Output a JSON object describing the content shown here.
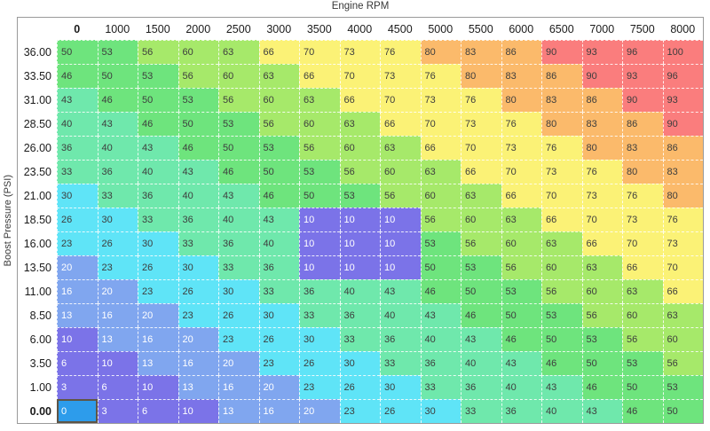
{
  "title": "Engine RPM",
  "y_axis_label": "Boost Pressure (PSI)",
  "chart_data": {
    "type": "heatmap",
    "title": "Engine RPM",
    "xlabel": "Engine RPM",
    "ylabel": "Boost Pressure (PSI)",
    "legend_position": "none",
    "grid": "dashed-white",
    "columns": [
      "0",
      "1000",
      "1500",
      "2000",
      "2500",
      "3000",
      "3500",
      "4000",
      "4500",
      "5000",
      "5500",
      "6000",
      "6500",
      "7000",
      "7500",
      "8000"
    ],
    "rows": [
      {
        "label": "36.00",
        "values": [
          50,
          53,
          56,
          60,
          63,
          66,
          70,
          73,
          76,
          80,
          83,
          86,
          90,
          93,
          96,
          100
        ]
      },
      {
        "label": "33.50",
        "values": [
          46,
          50,
          53,
          56,
          60,
          63,
          66,
          70,
          73,
          76,
          80,
          83,
          86,
          90,
          93,
          96
        ]
      },
      {
        "label": "31.00",
        "values": [
          43,
          46,
          50,
          53,
          56,
          60,
          63,
          66,
          70,
          73,
          76,
          80,
          83,
          86,
          90,
          93
        ]
      },
      {
        "label": "28.50",
        "values": [
          40,
          43,
          46,
          50,
          53,
          56,
          60,
          63,
          66,
          70,
          73,
          76,
          80,
          83,
          86,
          90
        ]
      },
      {
        "label": "26.00",
        "values": [
          36,
          40,
          43,
          46,
          50,
          53,
          56,
          60,
          63,
          66,
          70,
          73,
          76,
          80,
          83,
          86
        ]
      },
      {
        "label": "23.50",
        "values": [
          33,
          36,
          40,
          43,
          46,
          50,
          53,
          56,
          60,
          63,
          66,
          70,
          73,
          76,
          80,
          83
        ]
      },
      {
        "label": "21.00",
        "values": [
          30,
          33,
          36,
          40,
          43,
          46,
          50,
          53,
          56,
          60,
          63,
          66,
          70,
          73,
          76,
          80
        ]
      },
      {
        "label": "18.50",
        "values": [
          26,
          30,
          33,
          36,
          40,
          43,
          10,
          10,
          10,
          56,
          60,
          63,
          66,
          70,
          73,
          76
        ]
      },
      {
        "label": "16.00",
        "values": [
          23,
          26,
          30,
          33,
          36,
          40,
          10,
          10,
          10,
          53,
          56,
          60,
          63,
          66,
          70,
          73
        ]
      },
      {
        "label": "13.50",
        "values": [
          20,
          23,
          26,
          30,
          33,
          36,
          10,
          10,
          10,
          50,
          53,
          56,
          60,
          63,
          66,
          70
        ]
      },
      {
        "label": "11.00",
        "values": [
          16,
          20,
          23,
          26,
          30,
          33,
          36,
          40,
          43,
          46,
          50,
          53,
          56,
          60,
          63,
          66
        ]
      },
      {
        "label": "8.50",
        "values": [
          13,
          16,
          20,
          23,
          26,
          30,
          33,
          36,
          40,
          43,
          46,
          50,
          53,
          56,
          60,
          63
        ]
      },
      {
        "label": "6.00",
        "values": [
          10,
          13,
          16,
          20,
          23,
          26,
          30,
          33,
          36,
          40,
          43,
          46,
          50,
          53,
          56,
          60
        ]
      },
      {
        "label": "3.50",
        "values": [
          6,
          10,
          13,
          16,
          20,
          23,
          26,
          30,
          33,
          36,
          40,
          43,
          46,
          50,
          53,
          56
        ]
      },
      {
        "label": "1.00",
        "values": [
          3,
          6,
          10,
          13,
          16,
          20,
          23,
          26,
          30,
          33,
          36,
          40,
          43,
          46,
          50,
          53
        ]
      },
      {
        "label": "0.00",
        "values": [
          0,
          3,
          6,
          10,
          13,
          16,
          20,
          23,
          26,
          30,
          33,
          36,
          40,
          43,
          46,
          50
        ]
      }
    ],
    "selected": {
      "row": 15,
      "col": 0,
      "row_label": "0.00",
      "column_label": "0",
      "value": 0
    },
    "palette": {
      "0": "#7b73e8",
      "3": "#7b73e8",
      "6": "#7b73e8",
      "10": "#7b73e8",
      "13": "#80a6ef",
      "16": "#80a6ef",
      "20": "#80a6ef",
      "23": "#5fe4f7",
      "26": "#5fe4f7",
      "30": "#5fe4f7",
      "33": "#6fe8ac",
      "36": "#6fe8ac",
      "40": "#6fe8ac",
      "43": "#6fe8ac",
      "46": "#6ee47d",
      "50": "#6ee47d",
      "53": "#6ee47d",
      "56": "#a6e96a",
      "60": "#a6e96a",
      "63": "#a6e96a",
      "66": "#fbf276",
      "70": "#fbf276",
      "73": "#fbf276",
      "76": "#fbf276",
      "80": "#fbba6b",
      "83": "#fbba6b",
      "86": "#fbba6b",
      "90": "#fa7d7d",
      "93": "#fa7d7d",
      "96": "#fa7d7d",
      "100": "#fa7d7d"
    },
    "colors": {
      "selected_bg": "#2d9ceb",
      "selected_border": "#5f5546",
      "light_text": "#ffffff",
      "dark_text": "#3d3d3d",
      "light_text_max_value": 20,
      "table_border": "#9a9a9a"
    }
  }
}
